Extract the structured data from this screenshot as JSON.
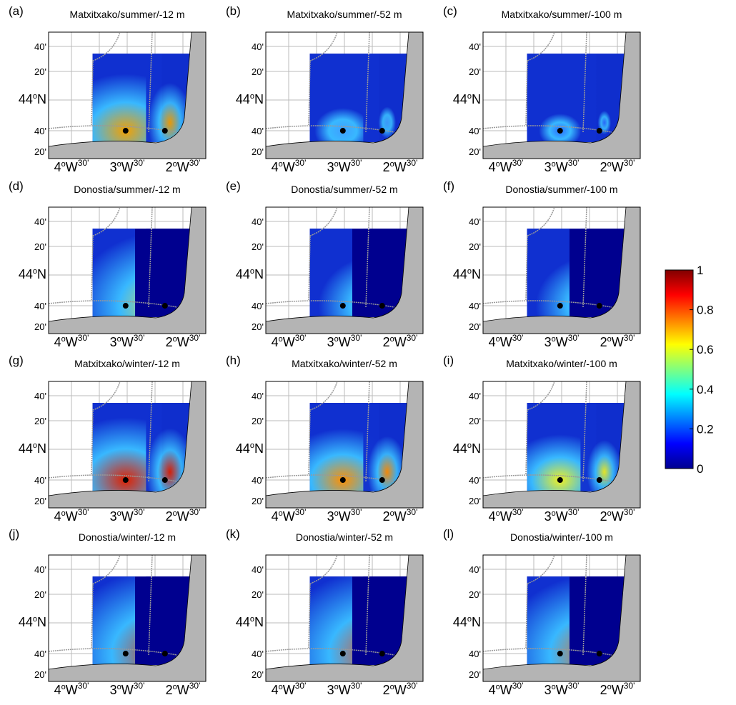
{
  "panels": [
    {
      "label": "(a)",
      "title": "Matxitxako/summer/-12 m"
    },
    {
      "label": "(b)",
      "title": "Matxitxako/summer/-52 m"
    },
    {
      "label": "(c)",
      "title": "Matxitxako/summer/-100 m"
    },
    {
      "label": "(d)",
      "title": "Donostia/summer/-12 m"
    },
    {
      "label": "(e)",
      "title": "Donostia/summer/-52 m"
    },
    {
      "label": "(f)",
      "title": "Donostia/summer/-100 m"
    },
    {
      "label": "(g)",
      "title": "Matxitxako/winter/-12 m"
    },
    {
      "label": "(h)",
      "title": "Matxitxako/winter/-52 m"
    },
    {
      "label": "(i)",
      "title": "Matxitxako/winter/-100 m"
    },
    {
      "label": "(j)",
      "title": "Donostia/winter/-12 m"
    },
    {
      "label": "(k)",
      "title": "Donostia/winter/-52 m"
    },
    {
      "label": "(l)",
      "title": "Donostia/winter/-100 m"
    }
  ],
  "map_axes": {
    "yticks": [
      [
        "40'"
      ],
      [
        "20'"
      ],
      [
        "44",
        "o",
        "N"
      ],
      [
        "40'"
      ],
      [
        "20'"
      ]
    ],
    "xticks": [
      [
        "4",
        "o",
        "W",
        "30'"
      ],
      [
        "3",
        "o",
        "W",
        "30'"
      ],
      [
        "2",
        "o",
        "W",
        "30'"
      ]
    ]
  },
  "colorbar": {
    "lim": [
      0,
      1
    ],
    "ticks": [
      0,
      0.2,
      0.4,
      0.6,
      0.8,
      1
    ]
  }
}
